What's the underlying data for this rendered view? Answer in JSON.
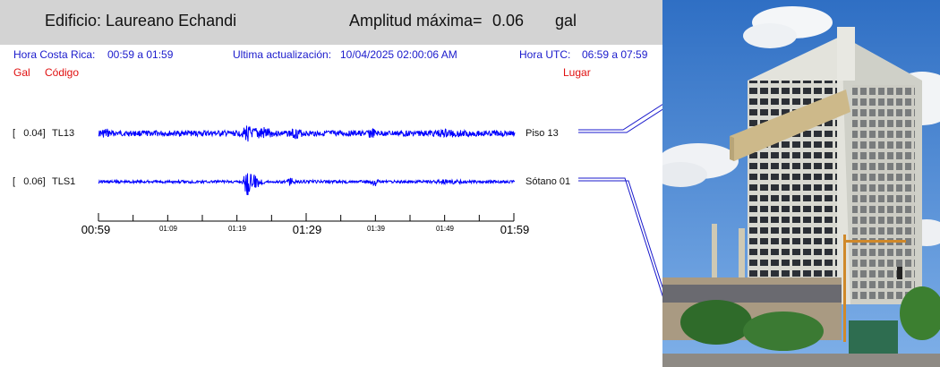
{
  "header": {
    "title": "Edificio: Laureano Echandi",
    "amp_label": "Amplitud máxima=",
    "amp_value": "0.06",
    "amp_unit": "gal"
  },
  "info": {
    "cr_label": "Hora Costa Rica:",
    "cr_range": "00:59 a 01:59",
    "update_label": "Ultima actualización:",
    "update_value": "10/04/2025 02:00:06 AM",
    "utc_label": "Hora UTC:",
    "utc_range": "06:59 a 07:59"
  },
  "columns": {
    "gal": "Gal",
    "codigo": "Código",
    "lugar": "Lugar"
  },
  "traces": [
    {
      "amp": "[   0.04]",
      "code": "TL13",
      "place": "Piso 13",
      "color": "#0000ff"
    },
    {
      "amp": "[   0.06]",
      "code": "TLS1",
      "place": "Sótano 01",
      "color": "#0000ff"
    }
  ],
  "time_axis": {
    "major": [
      "00:59",
      "01:29",
      "01:59"
    ],
    "minor": [
      "01:09",
      "01:19",
      "01:39",
      "01:49"
    ]
  }
}
